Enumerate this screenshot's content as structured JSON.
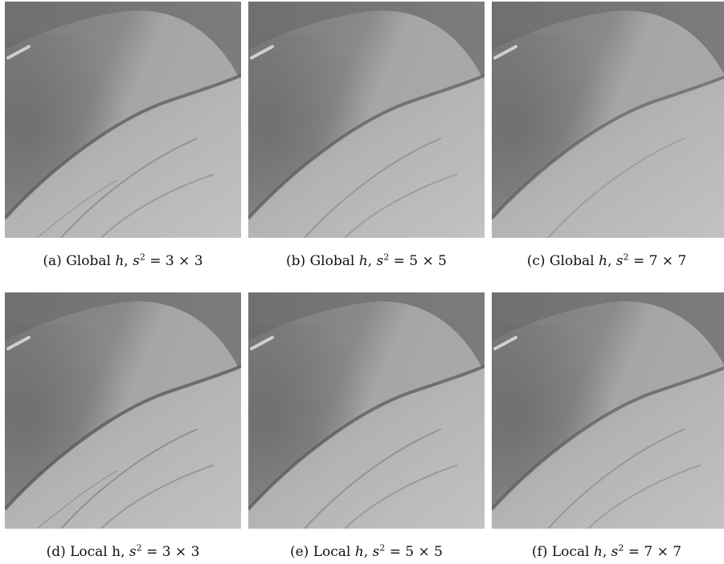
{
  "figure": {
    "panels": [
      {
        "caption": {
          "label": "(a) Global",
          "param": "h",
          "sep": ",",
          "eq": "= 3 × 3"
        }
      },
      {
        "caption": {
          "label": "(b) Global",
          "param": "h",
          "sep": ",",
          "eq": "= 5 × 5"
        }
      },
      {
        "caption": {
          "label": "(c) Global",
          "param": "h",
          "sep": ",",
          "eq": "= 7 × 7"
        }
      },
      {
        "caption": {
          "label": "(d) Local h,",
          "param": "",
          "sep": "",
          "eq": "= 3 × 3"
        }
      },
      {
        "caption": {
          "label": "(e) Local",
          "param": "h",
          "sep": ",",
          "eq": "= 5 × 5"
        }
      },
      {
        "caption": {
          "label": "(f) Local",
          "param": "h",
          "sep": ",",
          "eq": "= 7 × 7"
        }
      }
    ],
    "colors": {
      "background_gray": "#6f6f6f",
      "dome_gray": "#8e8e8e",
      "lower_surface_gray": "#b6b6b6",
      "edge_dark": "#4a4a4a"
    }
  }
}
